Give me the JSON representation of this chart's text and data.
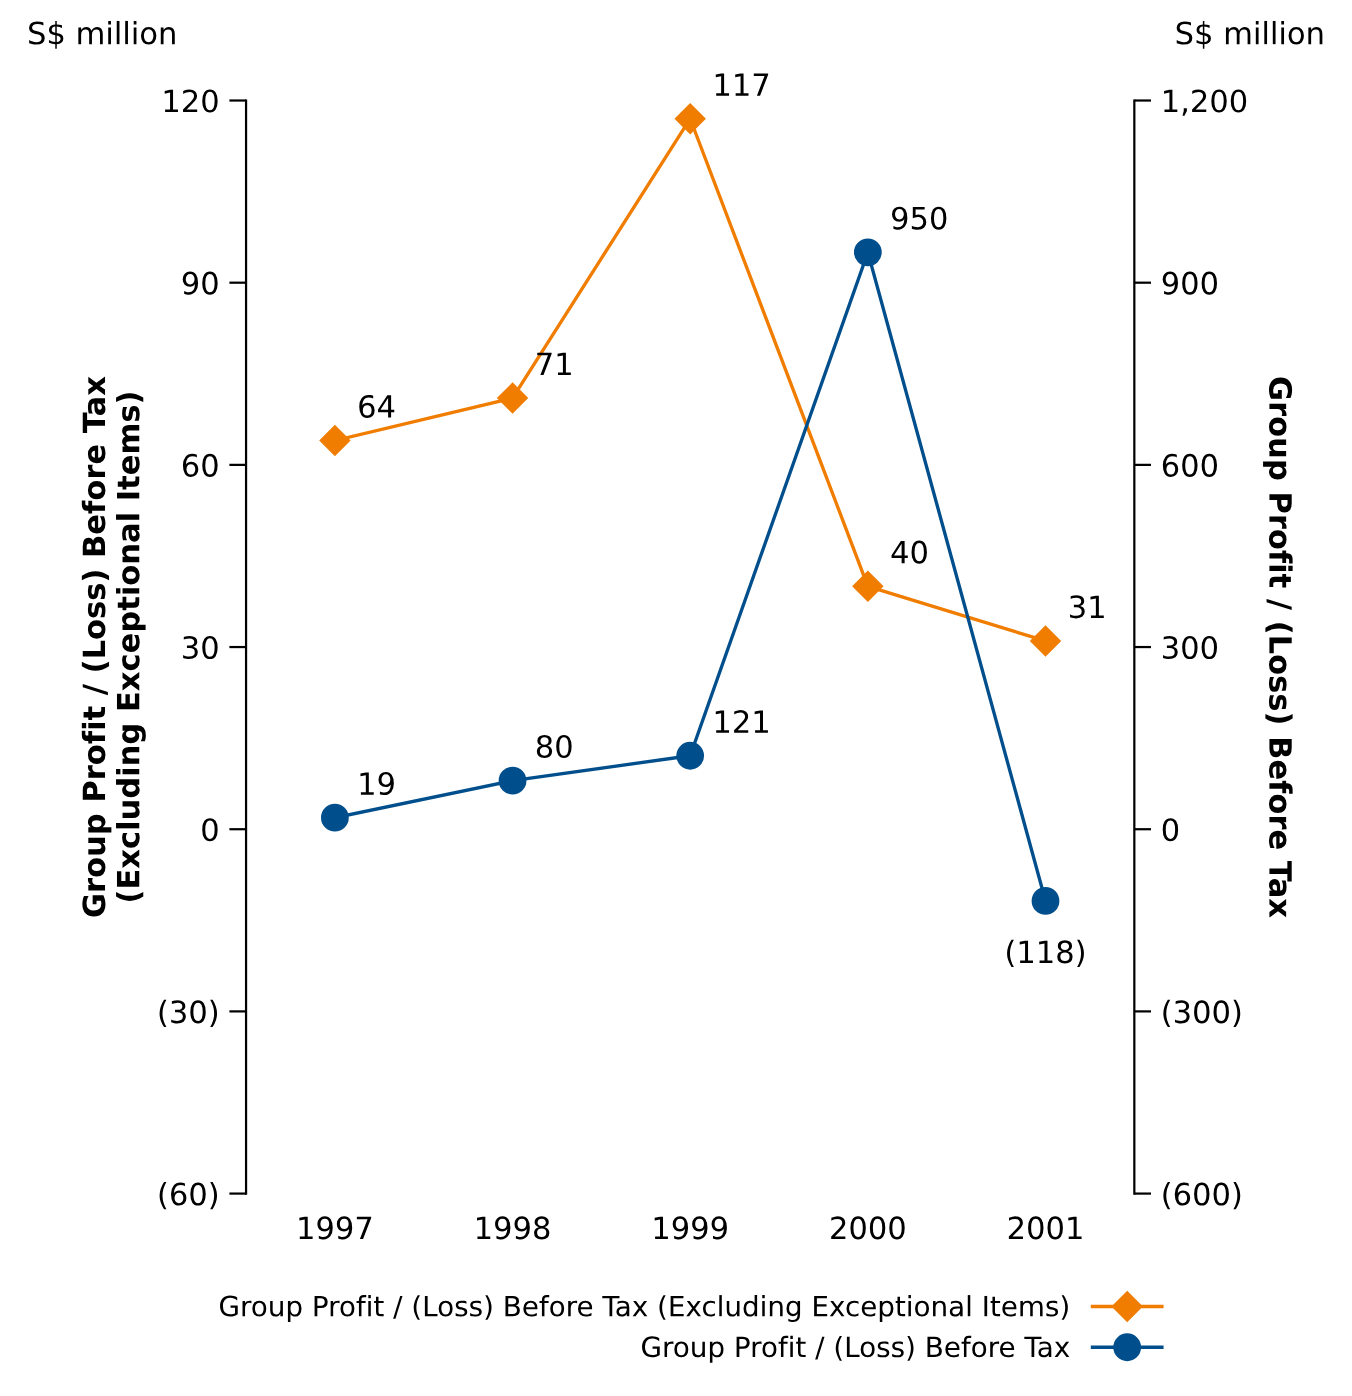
{
  "chart_data": {
    "type": "line",
    "categories": [
      "1997",
      "1998",
      "1999",
      "2000",
      "2001"
    ],
    "ylabel": "Group Profit / (Loss) Before Tax\n(Excluding Exceptional Items)",
    "y2label": "Group Profit / (Loss) Before Tax",
    "annotations": [
      "S$ million",
      "S$ million"
    ],
    "ylim": [
      -60,
      120
    ],
    "yticks": [
      {
        "value": -60,
        "label": "(60)"
      },
      {
        "value": -30,
        "label": "(30)"
      },
      0,
      30,
      60,
      90,
      120
    ],
    "y2lim": [
      -600,
      1200
    ],
    "y2ticks": [
      {
        "value": -600,
        "label": "(600)"
      },
      {
        "value": -300,
        "label": "(300)"
      },
      0,
      300,
      600,
      900,
      {
        "value": 1200,
        "label": "1,200"
      }
    ],
    "series": [
      {
        "name": "Group Profit / (Loss) Before Tax (Excluding Exceptional Items)",
        "color": "#f07d00",
        "marker": "diamond",
        "values": [
          64,
          71,
          117,
          40,
          31
        ],
        "value_labels": [
          "64",
          "71",
          "117",
          "40",
          "31"
        ]
      },
      {
        "name": "Group Profit / (Loss) Before Tax",
        "color": "#004f8c",
        "marker": "circle",
        "axis": "y2",
        "values": [
          19,
          80,
          121,
          950,
          -118
        ],
        "value_labels": [
          "19",
          "80",
          "121",
          "950",
          "(118)"
        ]
      }
    ],
    "grid": false,
    "legend": "bottom"
  }
}
